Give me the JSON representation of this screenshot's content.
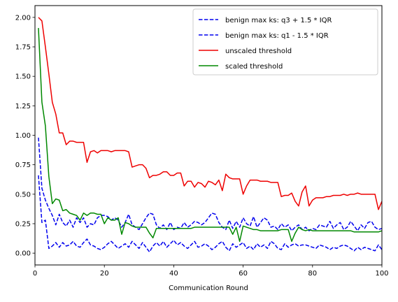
{
  "chart_data": {
    "type": "line",
    "title": "",
    "xlabel": "Communication Round",
    "ylabel": "",
    "xlim": [
      0,
      100
    ],
    "ylim": [
      -0.1,
      2.1
    ],
    "xticks": [
      0,
      20,
      40,
      60,
      80,
      100
    ],
    "yticks": [
      0.0,
      0.25,
      0.5,
      0.75,
      1.0,
      1.25,
      1.5,
      1.75,
      2.0
    ],
    "ytick_labels": [
      "0.00",
      "0.25",
      "0.50",
      "0.75",
      "1.00",
      "1.25",
      "1.50",
      "1.75",
      "2.00"
    ],
    "grid": false,
    "legend_position": "top-right",
    "x": [
      1,
      2,
      3,
      4,
      5,
      6,
      7,
      8,
      9,
      10,
      11,
      12,
      13,
      14,
      15,
      16,
      17,
      18,
      19,
      20,
      21,
      22,
      23,
      24,
      25,
      26,
      27,
      28,
      29,
      30,
      31,
      32,
      33,
      34,
      35,
      36,
      37,
      38,
      39,
      40,
      41,
      42,
      43,
      44,
      45,
      46,
      47,
      48,
      49,
      50,
      51,
      52,
      53,
      54,
      55,
      56,
      57,
      58,
      59,
      60,
      61,
      62,
      63,
      64,
      65,
      66,
      67,
      68,
      69,
      70,
      71,
      72,
      73,
      74,
      75,
      76,
      77,
      78,
      79,
      80,
      81,
      82,
      83,
      84,
      85,
      86,
      87,
      88,
      89,
      90,
      91,
      92,
      93,
      94,
      95,
      96,
      97,
      98,
      99,
      100
    ],
    "series": [
      {
        "name": "benign max ks: q3 + 1.5 * IQR",
        "color": "#0000ee",
        "style": "dashed",
        "values": [
          0.98,
          0.55,
          0.45,
          0.38,
          0.32,
          0.24,
          0.33,
          0.26,
          0.23,
          0.28,
          0.22,
          0.3,
          0.26,
          0.3,
          0.22,
          0.25,
          0.24,
          0.3,
          0.32,
          0.32,
          0.31,
          0.28,
          0.3,
          0.28,
          0.22,
          0.26,
          0.33,
          0.24,
          0.22,
          0.2,
          0.25,
          0.3,
          0.34,
          0.33,
          0.24,
          0.21,
          0.24,
          0.2,
          0.26,
          0.2,
          0.22,
          0.21,
          0.26,
          0.22,
          0.24,
          0.27,
          0.26,
          0.24,
          0.26,
          0.3,
          0.34,
          0.33,
          0.26,
          0.22,
          0.2,
          0.28,
          0.21,
          0.27,
          0.22,
          0.3,
          0.25,
          0.23,
          0.31,
          0.22,
          0.26,
          0.3,
          0.28,
          0.22,
          0.23,
          0.2,
          0.25,
          0.22,
          0.24,
          0.19,
          0.22,
          0.24,
          0.2,
          0.22,
          0.19,
          0.21,
          0.2,
          0.24,
          0.23,
          0.22,
          0.27,
          0.21,
          0.24,
          0.26,
          0.2,
          0.22,
          0.27,
          0.23,
          0.19,
          0.24,
          0.21,
          0.26,
          0.27,
          0.22,
          0.2,
          0.21
        ]
      },
      {
        "name": "benign max ks: q1 - 1.5 * IQR",
        "color": "#0000ee",
        "style": "dashed",
        "values": [
          0.66,
          0.26,
          0.28,
          0.04,
          0.06,
          0.09,
          0.05,
          0.09,
          0.06,
          0.07,
          0.1,
          0.06,
          0.05,
          0.09,
          0.12,
          0.07,
          0.06,
          0.04,
          0.03,
          0.05,
          0.08,
          0.1,
          0.07,
          0.04,
          0.06,
          0.08,
          0.05,
          0.1,
          0.07,
          0.04,
          0.09,
          0.05,
          0.01,
          0.06,
          0.09,
          0.06,
          0.1,
          0.05,
          0.08,
          0.11,
          0.07,
          0.09,
          0.06,
          0.04,
          0.07,
          0.1,
          0.05,
          0.06,
          0.08,
          0.06,
          0.03,
          0.05,
          0.08,
          0.1,
          0.05,
          0.02,
          0.08,
          0.05,
          0.07,
          0.09,
          0.04,
          0.06,
          0.03,
          0.08,
          0.05,
          0.07,
          0.04,
          0.1,
          0.08,
          0.04,
          0.03,
          0.08,
          0.05,
          0.07,
          0.08,
          0.06,
          0.07,
          0.07,
          0.06,
          0.05,
          0.04,
          0.07,
          0.06,
          0.05,
          0.03,
          0.05,
          0.04,
          0.06,
          0.07,
          0.06,
          0.04,
          0.02,
          0.05,
          0.03,
          0.05,
          0.04,
          0.03,
          0.02,
          0.07,
          0.03
        ]
      },
      {
        "name": "unscaled threshold",
        "color": "#ee0000",
        "style": "solid",
        "values": [
          2.0,
          1.97,
          1.75,
          1.52,
          1.28,
          1.18,
          1.02,
          1.02,
          0.92,
          0.95,
          0.95,
          0.94,
          0.94,
          0.94,
          0.77,
          0.86,
          0.87,
          0.85,
          0.87,
          0.87,
          0.87,
          0.86,
          0.87,
          0.87,
          0.87,
          0.87,
          0.86,
          0.73,
          0.74,
          0.75,
          0.75,
          0.72,
          0.64,
          0.66,
          0.66,
          0.67,
          0.69,
          0.69,
          0.66,
          0.66,
          0.68,
          0.68,
          0.57,
          0.61,
          0.61,
          0.56,
          0.6,
          0.59,
          0.56,
          0.61,
          0.6,
          0.58,
          0.62,
          0.53,
          0.67,
          0.64,
          0.63,
          0.63,
          0.63,
          0.5,
          0.57,
          0.62,
          0.62,
          0.62,
          0.61,
          0.61,
          0.61,
          0.6,
          0.6,
          0.6,
          0.48,
          0.49,
          0.49,
          0.51,
          0.44,
          0.4,
          0.52,
          0.57,
          0.4,
          0.45,
          0.47,
          0.47,
          0.47,
          0.48,
          0.48,
          0.49,
          0.49,
          0.49,
          0.5,
          0.49,
          0.5,
          0.5,
          0.51,
          0.5,
          0.5,
          0.5,
          0.5,
          0.5,
          0.37,
          0.44
        ]
      },
      {
        "name": "scaled threshold",
        "color": "#008800",
        "style": "solid",
        "values": [
          1.91,
          1.28,
          1.08,
          0.65,
          0.42,
          0.46,
          0.45,
          0.36,
          0.37,
          0.34,
          0.33,
          0.32,
          0.28,
          0.34,
          0.32,
          0.34,
          0.34,
          0.33,
          0.33,
          0.25,
          0.3,
          0.28,
          0.28,
          0.3,
          0.16,
          0.26,
          0.25,
          0.23,
          0.22,
          0.22,
          0.22,
          0.22,
          0.17,
          0.13,
          0.21,
          0.21,
          0.21,
          0.21,
          0.21,
          0.21,
          0.21,
          0.21,
          0.21,
          0.21,
          0.21,
          0.22,
          0.22,
          0.22,
          0.22,
          0.22,
          0.22,
          0.22,
          0.22,
          0.22,
          0.22,
          0.22,
          0.16,
          0.22,
          0.1,
          0.23,
          0.22,
          0.21,
          0.2,
          0.2,
          0.19,
          0.19,
          0.19,
          0.19,
          0.19,
          0.19,
          0.2,
          0.2,
          0.2,
          0.1,
          0.17,
          0.22,
          0.2,
          0.19,
          0.2,
          0.19,
          0.19,
          0.19,
          0.19,
          0.19,
          0.19,
          0.19,
          0.19,
          0.19,
          0.19,
          0.19,
          0.19,
          0.18,
          0.18,
          0.18,
          0.18,
          0.18,
          0.18,
          0.18,
          0.18,
          0.19
        ]
      }
    ]
  }
}
